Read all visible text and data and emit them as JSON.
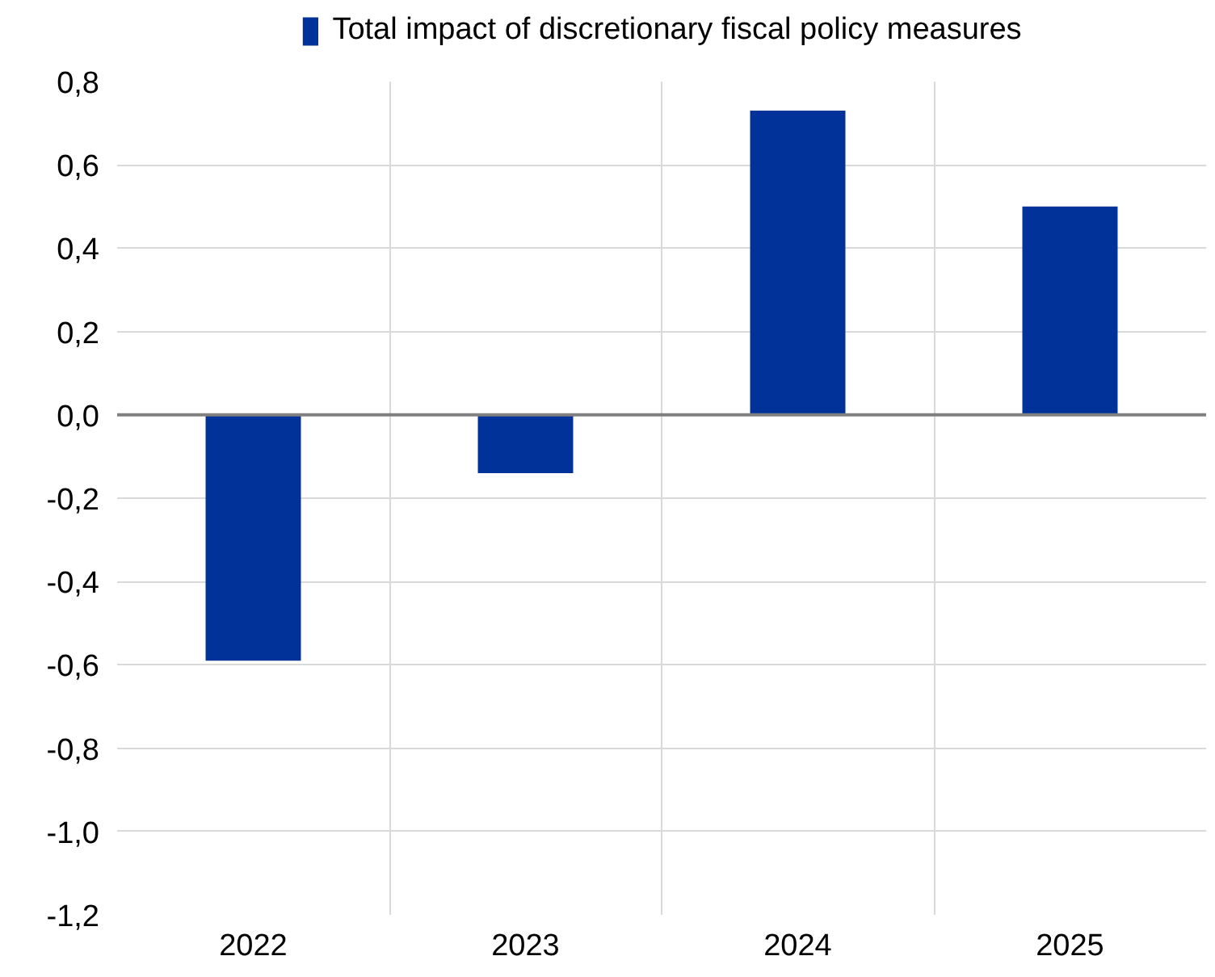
{
  "chart_data": {
    "type": "bar",
    "categories": [
      "2022",
      "2023",
      "2024",
      "2025"
    ],
    "series": [
      {
        "name": "Total impact of discretionary fiscal policy measures",
        "color": "#003299",
        "values": [
          -0.59,
          -0.14,
          0.73,
          0.5
        ]
      }
    ],
    "ylim": [
      -1.2,
      0.8
    ],
    "yticks": [
      {
        "value": -1.2,
        "label": "-1,2"
      },
      {
        "value": -1.0,
        "label": "-1,0"
      },
      {
        "value": -0.8,
        "label": "-0,8"
      },
      {
        "value": -0.6,
        "label": "-0,6"
      },
      {
        "value": -0.4,
        "label": "-0,4"
      },
      {
        "value": -0.2,
        "label": "-0,2"
      },
      {
        "value": 0.0,
        "label": "0,0"
      },
      {
        "value": 0.2,
        "label": "0,2"
      },
      {
        "value": 0.4,
        "label": "0,4"
      },
      {
        "value": 0.6,
        "label": "0,6"
      },
      {
        "value": 0.8,
        "label": "0,8"
      }
    ],
    "ref_lines": [
      {
        "axis": "y",
        "value": 0.0,
        "color": "#808080"
      }
    ],
    "grid": true,
    "legend": "top"
  }
}
